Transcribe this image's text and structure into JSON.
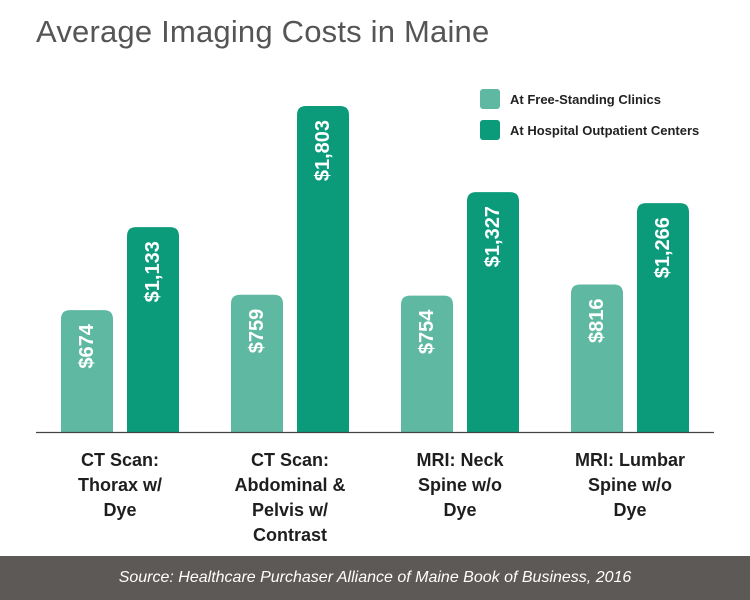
{
  "chart_data": {
    "type": "bar",
    "title": "Average Imaging Costs in Maine",
    "categories": [
      [
        "CT Scan:",
        "Thorax w/",
        "Dye"
      ],
      [
        "CT Scan:",
        "Abdominal &",
        "Pelvis w/",
        "Contrast"
      ],
      [
        "MRI: Neck",
        "Spine w/o",
        "Dye"
      ],
      [
        "MRI: Lumbar",
        "Spine w/o",
        "Dye"
      ]
    ],
    "series": [
      {
        "name": "At Free-Standing Clinics",
        "color": "#5fb9a2",
        "values": [
          674,
          759,
          754,
          816
        ],
        "labels": [
          "$674",
          "$759",
          "$754",
          "$816"
        ]
      },
      {
        "name": "At Hospital Outpatient Centers",
        "color": "#0b9b7b",
        "values": [
          1133,
          1803,
          1327,
          1266
        ],
        "labels": [
          "$1,133",
          "$1,803",
          "$1,327",
          "$1,266"
        ]
      }
    ],
    "ylim": [
      0,
      1803
    ],
    "legend_position": "top-right",
    "grid": false
  },
  "footer": "Source: Healthcare Purchaser Alliance of Maine Book of Business, 2016"
}
